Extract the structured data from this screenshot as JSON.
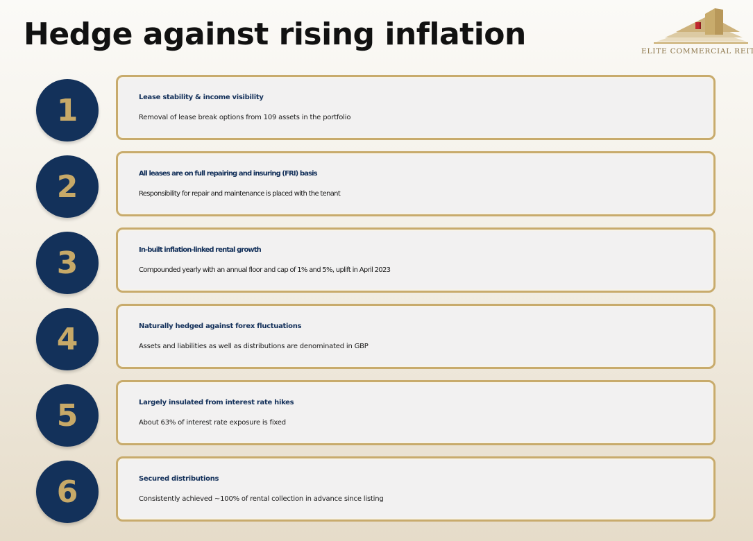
{
  "page": {
    "title": "Hedge against rising inflation"
  },
  "logo": {
    "name": "ELITE COMMERCIAL REIT",
    "icon": "building-logo-icon",
    "colors": {
      "gold": "#c8ab6c",
      "red": "#c0272d"
    }
  },
  "colors": {
    "circle_fill": "#13315a",
    "number_color": "#c7a968",
    "card_border": "#c8ab6c",
    "card_fill": "#f2f1f1",
    "title_color": "#13305a",
    "text_color": "#1a1a1a"
  },
  "items": [
    {
      "number": "1",
      "title": "Lease stability & income visibility",
      "description": "Removal of lease break options from 109 assets in the portfolio"
    },
    {
      "number": "2",
      "title": "All leases are on full repairing and insuring (FRI) basis",
      "description": "Responsibility for repair and maintenance is placed with the tenant"
    },
    {
      "number": "3",
      "title": "In-built inflation-linked rental growth",
      "description": "Compounded yearly with an annual floor and cap of 1% and 5%, uplift in April 2023"
    },
    {
      "number": "4",
      "title": "Naturally hedged against forex fluctuations",
      "description": "Assets and liabilities as well as distributions are denominated in GBP"
    },
    {
      "number": "5",
      "title": "Largely insulated from interest rate hikes",
      "description": "About 63% of interest rate exposure is fixed"
    },
    {
      "number": "6",
      "title": "Secured distributions",
      "description": "Consistently achieved ~100% of rental collection in advance since listing"
    }
  ]
}
